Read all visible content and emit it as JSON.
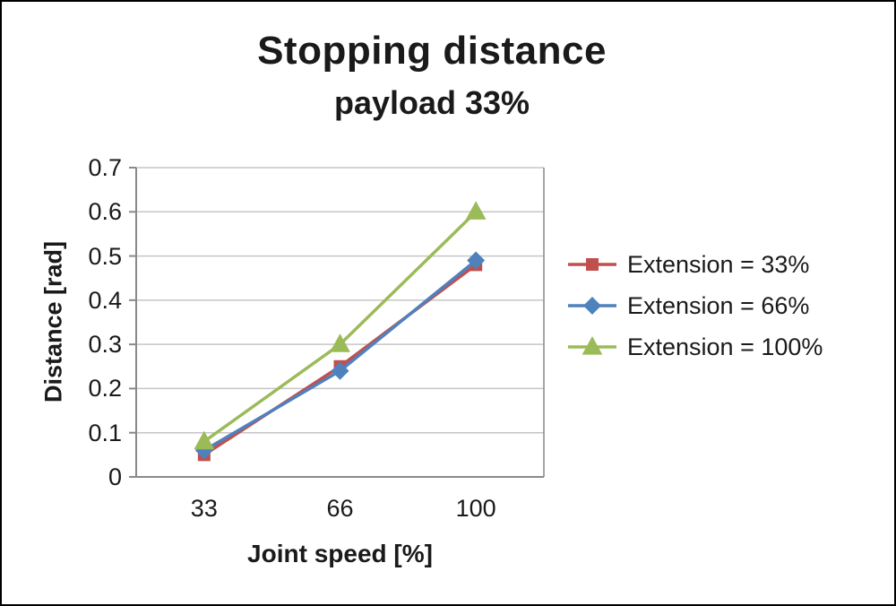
{
  "chart_data": {
    "type": "line",
    "title": "Stopping distance",
    "subtitle": "payload 33%",
    "categories": [
      "33",
      "66",
      "100"
    ],
    "series": [
      {
        "name": "Extension = 33%",
        "marker": "square",
        "color": "#C0504D",
        "values": [
          0.05,
          0.25,
          0.48
        ]
      },
      {
        "name": "Extension = 66%",
        "marker": "diamond",
        "color": "#4F81BD",
        "values": [
          0.06,
          0.24,
          0.49
        ]
      },
      {
        "name": "Extension = 100%",
        "marker": "triangle",
        "color": "#9BBB59",
        "values": [
          0.08,
          0.3,
          0.6
        ]
      }
    ],
    "xlabel": "Joint speed [%]",
    "ylabel": "Distance [rad]",
    "ylim": [
      0,
      0.7
    ],
    "ytick_step": 0.1,
    "grid": true,
    "legend_position": "right",
    "colors": {
      "gridline": "#C6C6C6",
      "axis_line": "#898989",
      "text": "#1a1a1a"
    }
  }
}
